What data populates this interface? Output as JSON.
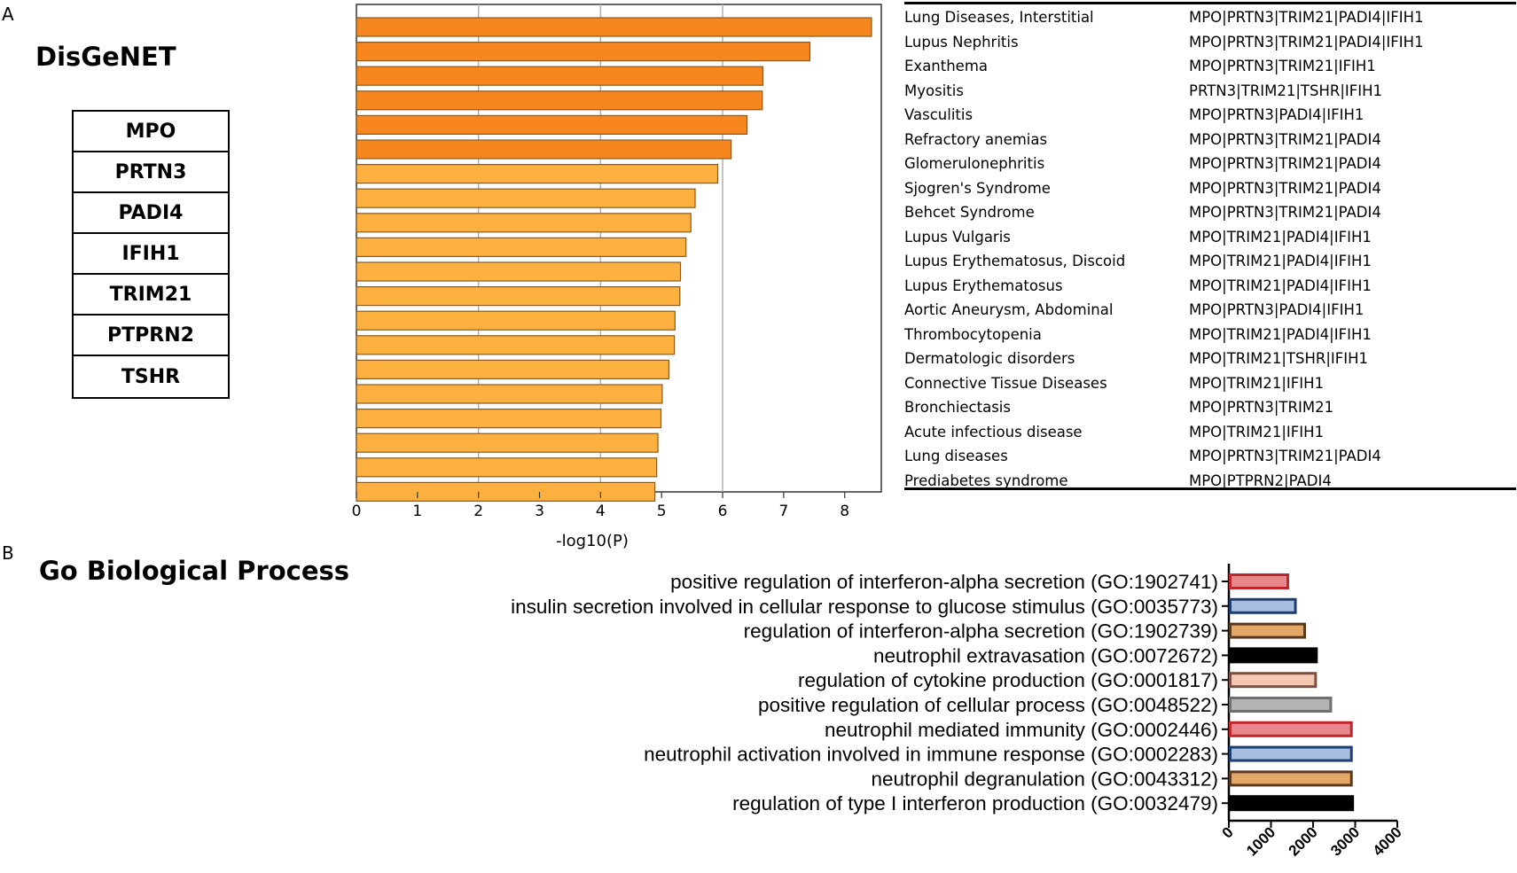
{
  "panel_a": {
    "letter": "A",
    "title": "DisGeNET",
    "genes": [
      "MPO",
      "PRTN3",
      "PADI4",
      "IFIH1",
      "TRIM21",
      "PTPRN2",
      "TSHR"
    ]
  },
  "panel_b": {
    "letter": "B",
    "title": "Go Biological Process"
  },
  "colors": {
    "bar_dark_orange": "#f7861f",
    "bar_light_orange": "#fbb040",
    "bar_edge": "#8a5a1e",
    "grid": "#b0b0b0"
  },
  "chart_data": [
    {
      "type": "bar",
      "orientation": "horizontal",
      "xlabel": "-log10(P)",
      "xlim": [
        0,
        8.6
      ],
      "xticks": [
        0,
        1,
        2,
        3,
        4,
        5,
        6,
        7,
        8
      ],
      "gridlines": [
        2,
        4,
        6
      ],
      "categories": [
        "Lung Diseases, Interstitial",
        "Lupus Nephritis",
        "Exanthema",
        "Myositis",
        "Vasculitis",
        "Refractory anemias",
        "Glomerulonephritis",
        "Sjogren's Syndrome",
        "Behcet Syndrome",
        "Lupus Vulgaris",
        "Lupus Erythematosus, Discoid",
        "Lupus Erythematosus",
        "Aortic Aneurysm, Abdominal",
        "Thrombocytopenia",
        "Dermatologic disorders",
        "Connective Tissue Diseases",
        "Bronchiectasis",
        "Acute infectious disease",
        "Lung diseases",
        "Prediabetes syndrome"
      ],
      "values": [
        8.44,
        7.43,
        6.66,
        6.65,
        6.4,
        6.14,
        5.92,
        5.55,
        5.48,
        5.4,
        5.31,
        5.3,
        5.22,
        5.21,
        5.12,
        5.01,
        4.99,
        4.94,
        4.92,
        4.89
      ],
      "highlight_count": 6,
      "gene_sets": [
        "MPO|PRTN3|TRIM21|PADI4|IFIH1",
        "MPO|PRTN3|TRIM21|PADI4|IFIH1",
        "MPO|PRTN3|TRIM21|IFIH1",
        "PRTN3|TRIM21|TSHR|IFIH1",
        "MPO|PRTN3|PADI4|IFIH1",
        "MPO|PRTN3|TRIM21|PADI4",
        "MPO|PRTN3|TRIM21|PADI4",
        "MPO|PRTN3|TRIM21|PADI4",
        "MPO|PRTN3|TRIM21|PADI4",
        "MPO|TRIM21|PADI4|IFIH1",
        "MPO|TRIM21|PADI4|IFIH1",
        "MPO|TRIM21|PADI4|IFIH1",
        "MPO|PRTN3|PADI4|IFIH1",
        "MPO|TRIM21|PADI4|IFIH1",
        "MPO|TRIM21|TSHR|IFIH1",
        "MPO|TRIM21|IFIH1",
        "MPO|PRTN3|TRIM21",
        "MPO|TRIM21|IFIH1",
        "MPO|PRTN3|TRIM21|PADI4",
        "MPO|PTPRN2|PADI4"
      ]
    },
    {
      "type": "bar",
      "orientation": "horizontal",
      "xlim": [
        0,
        4000
      ],
      "xticks": [
        0,
        1000,
        2000,
        3000,
        4000
      ],
      "categories": [
        "positive regulation of interferon-alpha secretion (GO:1902741)",
        "insulin secretion involved in cellular response to glucose stimulus (GO:0035773)",
        "regulation of interferon-alpha secretion (GO:1902739)",
        "neutrophil extravasation (GO:0072672)",
        "regulation of cytokine production (GO:0001817)",
        "positive regulation of cellular process (GO:0048522)",
        "neutrophil mediated immunity (GO:0002446)",
        "neutrophil activation involved in immune response (GO:0002283)",
        "neutrophil degranulation (GO:0043312)",
        "regulation of type I interferon production (GO:0032479)"
      ],
      "values": [
        1400,
        1580,
        1800,
        2080,
        2060,
        2420,
        2910,
        2910,
        2910,
        2940
      ],
      "fill_colors": [
        "#e8888c",
        "#a7bede",
        "#e3a867",
        "#000000",
        "#f3c7b4",
        "#b3b3b3",
        "#e8888c",
        "#a7bede",
        "#e3a867",
        "#000000"
      ],
      "edge_colors": [
        "#c0272d",
        "#1f3f73",
        "#5a3a1e",
        "#000000",
        "#7a5040",
        "#6e6e6e",
        "#c0272d",
        "#1f3f73",
        "#5a3a1e",
        "#000000"
      ]
    }
  ]
}
